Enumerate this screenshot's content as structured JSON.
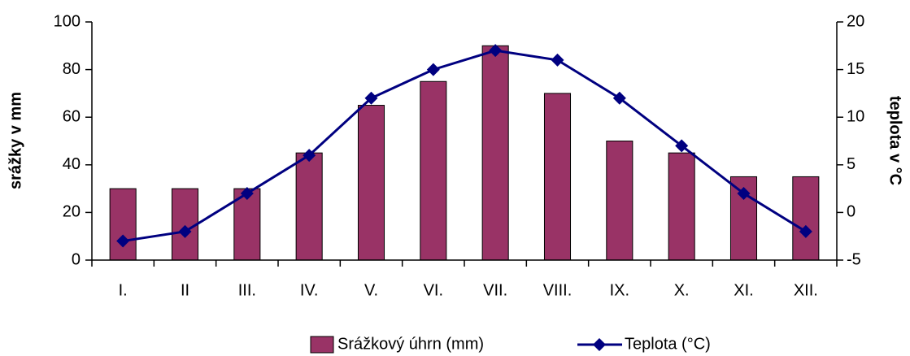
{
  "chart_data": {
    "type": "bar",
    "categories": [
      "I.",
      "II",
      "III.",
      "IV.",
      "V.",
      "VI.",
      "VII.",
      "VIII.",
      "IX.",
      "X.",
      "XI.",
      "XII."
    ],
    "series": [
      {
        "name": "Srážkový úhrn (mm)",
        "type": "bar",
        "color": "#993366",
        "values": [
          30,
          30,
          30,
          45,
          65,
          75,
          90,
          70,
          50,
          45,
          35,
          35
        ]
      },
      {
        "name": "Teplota (°C)",
        "type": "line",
        "axis": "y2",
        "color": "#000080",
        "values": [
          -3,
          -2,
          2,
          6,
          12,
          15,
          17,
          16,
          12,
          7,
          2,
          -2
        ]
      }
    ],
    "ylabel": "srážky v mm",
    "y2label": "teplota v °C",
    "ylim": [
      0,
      100
    ],
    "yticks": [
      0,
      20,
      40,
      60,
      80,
      100
    ],
    "y2lim": [
      -5,
      20
    ],
    "y2ticks": [
      -5,
      0,
      5,
      10,
      15,
      20
    ],
    "legend": "bottom",
    "grid": false
  }
}
